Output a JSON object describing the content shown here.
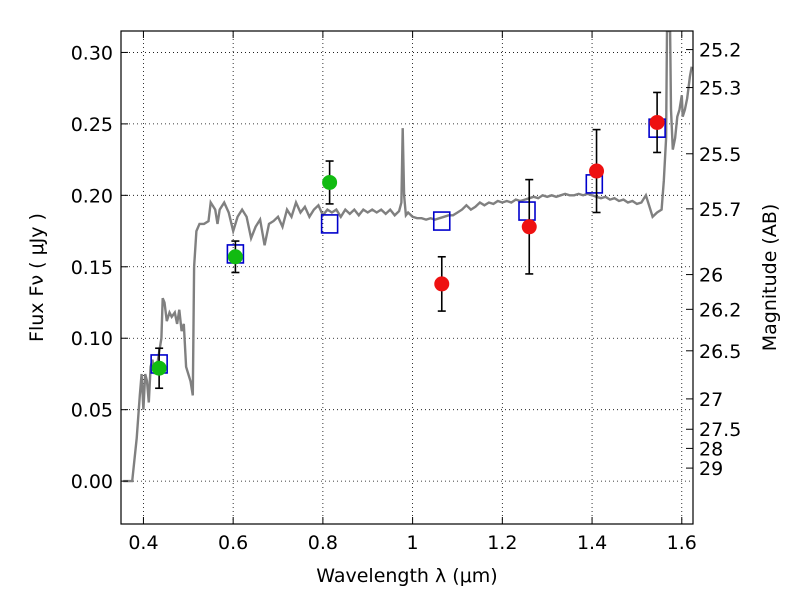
{
  "chart_data": {
    "type": "scatter",
    "xlabel": "Wavelength  λ (μm)",
    "ylabel": "Flux  Fν  ( μJy )",
    "ylabel_right": "Magnitude (AB)",
    "xlim": [
      0.35,
      1.625
    ],
    "ylim": [
      -0.03,
      0.315
    ],
    "grid": true,
    "x_ticks": [
      0.4,
      0.6,
      0.8,
      1.0,
      1.2,
      1.4,
      1.6
    ],
    "x_tick_labels": [
      "0.4",
      "0.6",
      "0.8",
      "1",
      "1.2",
      "1.4",
      "1.6"
    ],
    "y_ticks": [
      0.0,
      0.05,
      0.1,
      0.15,
      0.2,
      0.25,
      0.3
    ],
    "y_tick_labels": [
      "0.00",
      "0.05",
      "0.10",
      "0.15",
      "0.20",
      "0.25",
      "0.30"
    ],
    "mag_ticks": [
      25.2,
      25.3,
      25.5,
      25.7,
      26,
      26.2,
      26.5,
      27,
      27.5,
      28,
      29
    ],
    "mag_tick_labels": [
      "25.2",
      "25.3",
      "25.5",
      "25.7",
      "26",
      "26.2",
      "26.5",
      "27",
      "27.5",
      "28",
      "29"
    ],
    "colors": {
      "template": "#808080",
      "model": "#0000cc",
      "detection_green": "#11bb11",
      "detection_red": "#ee1111",
      "errorbar": "#000000"
    },
    "series": [
      {
        "kind": "line",
        "points": [
          [
            0.355,
            0.0
          ],
          [
            0.375,
            0.0
          ],
          [
            0.385,
            0.03
          ],
          [
            0.392,
            0.06
          ],
          [
            0.396,
            0.075
          ],
          [
            0.4,
            0.05
          ],
          [
            0.404,
            0.075
          ],
          [
            0.408,
            0.07
          ],
          [
            0.412,
            0.055
          ],
          [
            0.416,
            0.08
          ],
          [
            0.42,
            0.085
          ],
          [
            0.425,
            0.075
          ],
          [
            0.43,
            0.08
          ],
          [
            0.435,
            0.09
          ],
          [
            0.44,
            0.1
          ],
          [
            0.443,
            0.128
          ],
          [
            0.447,
            0.125
          ],
          [
            0.452,
            0.112
          ],
          [
            0.458,
            0.118
          ],
          [
            0.463,
            0.115
          ],
          [
            0.47,
            0.118
          ],
          [
            0.475,
            0.11
          ],
          [
            0.48,
            0.12
          ],
          [
            0.485,
            0.105
          ],
          [
            0.49,
            0.11
          ],
          [
            0.495,
            0.08
          ],
          [
            0.5,
            0.075
          ],
          [
            0.505,
            0.07
          ],
          [
            0.51,
            0.06
          ],
          [
            0.513,
            0.15
          ],
          [
            0.518,
            0.175
          ],
          [
            0.525,
            0.18
          ],
          [
            0.535,
            0.18
          ],
          [
            0.545,
            0.182
          ],
          [
            0.55,
            0.195
          ],
          [
            0.56,
            0.19
          ],
          [
            0.565,
            0.18
          ],
          [
            0.57,
            0.19
          ],
          [
            0.58,
            0.195
          ],
          [
            0.59,
            0.188
          ],
          [
            0.6,
            0.175
          ],
          [
            0.61,
            0.185
          ],
          [
            0.62,
            0.19
          ],
          [
            0.63,
            0.185
          ],
          [
            0.64,
            0.17
          ],
          [
            0.65,
            0.178
          ],
          [
            0.66,
            0.183
          ],
          [
            0.67,
            0.165
          ],
          [
            0.68,
            0.18
          ],
          [
            0.69,
            0.182
          ],
          [
            0.7,
            0.185
          ],
          [
            0.71,
            0.178
          ],
          [
            0.72,
            0.19
          ],
          [
            0.73,
            0.185
          ],
          [
            0.74,
            0.195
          ],
          [
            0.75,
            0.188
          ],
          [
            0.76,
            0.192
          ],
          [
            0.77,
            0.185
          ],
          [
            0.78,
            0.19
          ],
          [
            0.79,
            0.193
          ],
          [
            0.8,
            0.186
          ],
          [
            0.81,
            0.19
          ],
          [
            0.82,
            0.188
          ],
          [
            0.83,
            0.19
          ],
          [
            0.84,
            0.185
          ],
          [
            0.85,
            0.19
          ],
          [
            0.86,
            0.187
          ],
          [
            0.87,
            0.19
          ],
          [
            0.88,
            0.186
          ],
          [
            0.89,
            0.19
          ],
          [
            0.9,
            0.188
          ],
          [
            0.91,
            0.19
          ],
          [
            0.92,
            0.188
          ],
          [
            0.93,
            0.19
          ],
          [
            0.94,
            0.187
          ],
          [
            0.95,
            0.19
          ],
          [
            0.96,
            0.186
          ],
          [
            0.97,
            0.189
          ],
          [
            0.975,
            0.195
          ],
          [
            0.978,
            0.247
          ],
          [
            0.981,
            0.2
          ],
          [
            0.985,
            0.186
          ],
          [
            0.99,
            0.188
          ],
          [
            1.0,
            0.185
          ],
          [
            1.01,
            0.184
          ],
          [
            1.02,
            0.184
          ],
          [
            1.03,
            0.183
          ],
          [
            1.04,
            0.184
          ],
          [
            1.05,
            0.183
          ],
          [
            1.06,
            0.184
          ],
          [
            1.07,
            0.185
          ],
          [
            1.08,
            0.186
          ],
          [
            1.09,
            0.186
          ],
          [
            1.1,
            0.188
          ],
          [
            1.11,
            0.19
          ],
          [
            1.12,
            0.193
          ],
          [
            1.13,
            0.19
          ],
          [
            1.14,
            0.192
          ],
          [
            1.15,
            0.195
          ],
          [
            1.16,
            0.193
          ],
          [
            1.17,
            0.195
          ],
          [
            1.18,
            0.194
          ],
          [
            1.19,
            0.196
          ],
          [
            1.2,
            0.195
          ],
          [
            1.21,
            0.196
          ],
          [
            1.22,
            0.195
          ],
          [
            1.23,
            0.197
          ],
          [
            1.24,
            0.196
          ],
          [
            1.25,
            0.197
          ],
          [
            1.26,
            0.198
          ],
          [
            1.27,
            0.199
          ],
          [
            1.28,
            0.198
          ],
          [
            1.29,
            0.2
          ],
          [
            1.3,
            0.199
          ],
          [
            1.31,
            0.2
          ],
          [
            1.32,
            0.199
          ],
          [
            1.33,
            0.2
          ],
          [
            1.34,
            0.201
          ],
          [
            1.35,
            0.2
          ],
          [
            1.36,
            0.2
          ],
          [
            1.37,
            0.201
          ],
          [
            1.38,
            0.2
          ],
          [
            1.39,
            0.201
          ],
          [
            1.4,
            0.2
          ],
          [
            1.41,
            0.199
          ],
          [
            1.42,
            0.198
          ],
          [
            1.43,
            0.199
          ],
          [
            1.44,
            0.197
          ],
          [
            1.45,
            0.198
          ],
          [
            1.46,
            0.196
          ],
          [
            1.47,
            0.197
          ],
          [
            1.48,
            0.195
          ],
          [
            1.49,
            0.196
          ],
          [
            1.5,
            0.194
          ],
          [
            1.51,
            0.195
          ],
          [
            1.52,
            0.2
          ],
          [
            1.53,
            0.19
          ],
          [
            1.535,
            0.185
          ],
          [
            1.545,
            0.188
          ],
          [
            1.555,
            0.19
          ],
          [
            1.56,
            0.21
          ],
          [
            1.565,
            0.24
          ],
          [
            1.567,
            0.315
          ],
          [
            1.57,
            0.315
          ],
          [
            1.574,
            0.315
          ],
          [
            1.576,
            0.26
          ],
          [
            1.58,
            0.232
          ],
          [
            1.585,
            0.24
          ],
          [
            1.59,
            0.255
          ],
          [
            1.595,
            0.26
          ],
          [
            1.6,
            0.27
          ],
          [
            1.602,
            0.255
          ],
          [
            1.607,
            0.26
          ],
          [
            1.612,
            0.268
          ],
          [
            1.618,
            0.283
          ],
          [
            1.622,
            0.29
          ]
        ]
      },
      {
        "kind": "model_squares",
        "x": [
          0.435,
          0.605,
          0.815,
          1.065,
          1.255,
          1.405,
          1.545
        ],
        "y": [
          0.082,
          0.159,
          0.18,
          0.182,
          0.189,
          0.208,
          0.247
        ]
      },
      {
        "kind": "points_green",
        "x": [
          0.435,
          0.605,
          0.815
        ],
        "y": [
          0.079,
          0.157,
          0.209
        ],
        "yerr": [
          0.014,
          0.011,
          0.015
        ]
      },
      {
        "kind": "points_red",
        "x": [
          1.065,
          1.26,
          1.41,
          1.545
        ],
        "y": [
          0.138,
          0.178,
          0.217,
          0.251
        ],
        "yerr": [
          0.019,
          0.033,
          0.029,
          0.021
        ]
      }
    ]
  }
}
